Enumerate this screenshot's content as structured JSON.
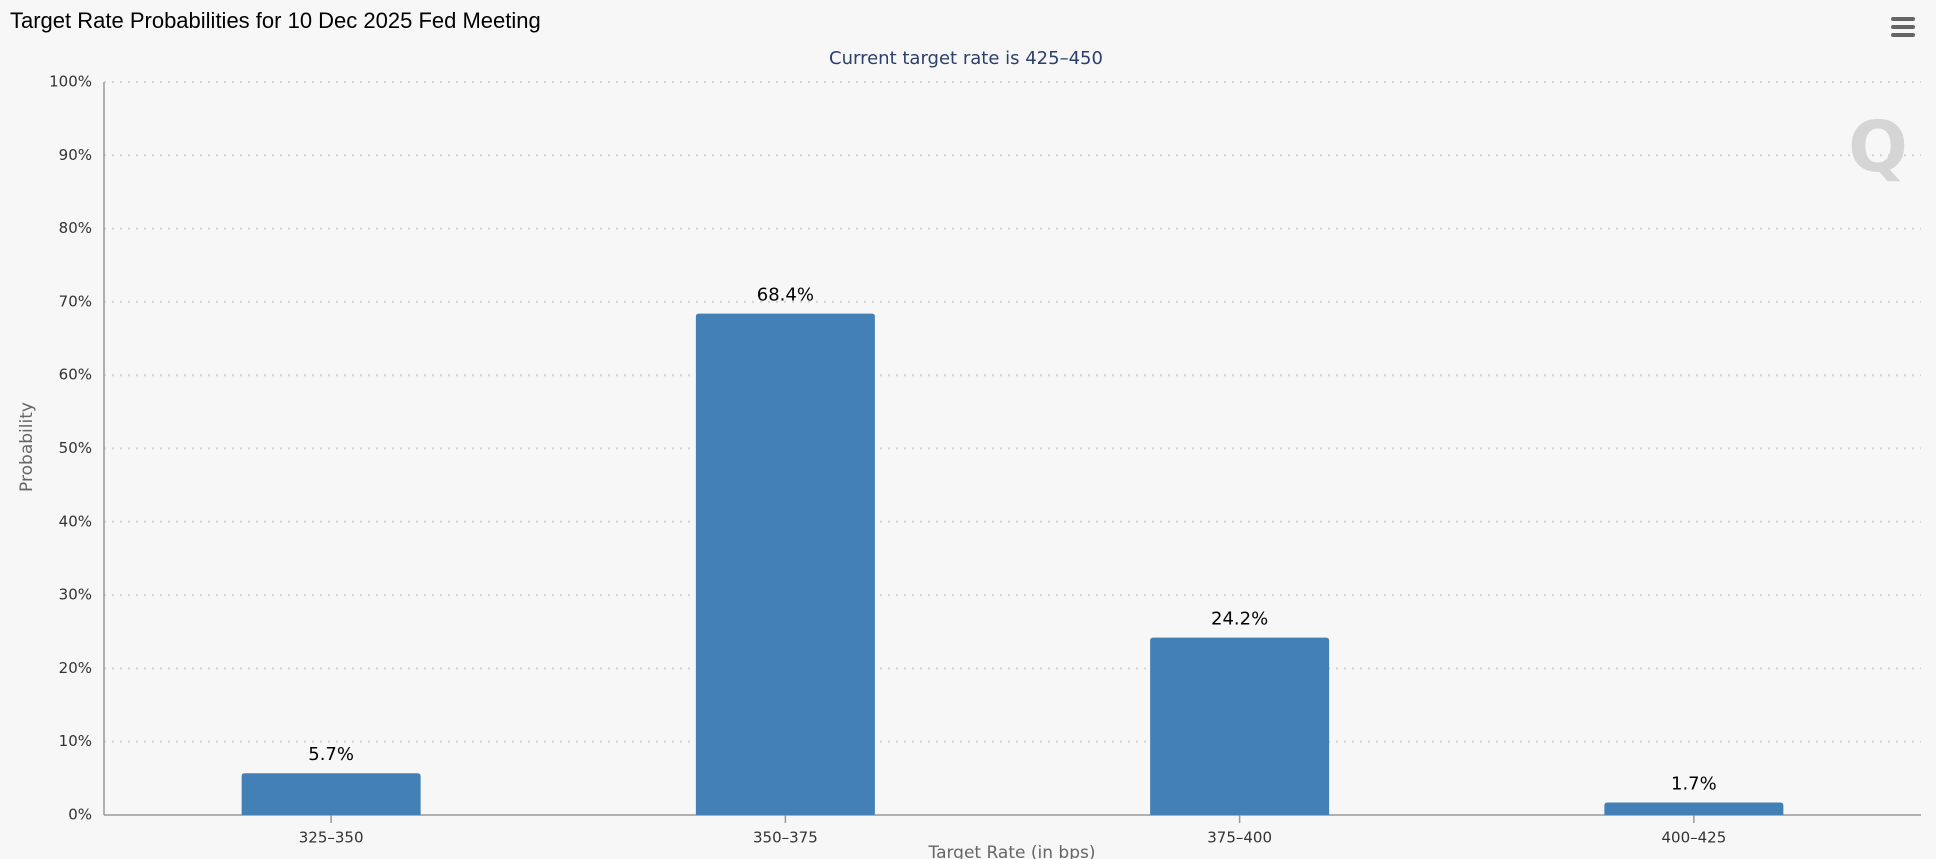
{
  "chart_data": {
    "type": "bar",
    "title": "Target Rate Probabilities for 10 Dec 2025 Fed Meeting",
    "subtitle": "Current target rate is 425–450",
    "x_label": "Target Rate (in bps)",
    "y_label": "Probability",
    "categories": [
      "325–350",
      "350–375",
      "375–400",
      "400–425"
    ],
    "values": [
      5.7,
      68.4,
      24.2,
      1.7
    ],
    "value_labels": [
      "5.7%",
      "68.4%",
      "24.2%",
      "1.7%"
    ],
    "color": "#4380b5",
    "ylim": [
      0,
      100
    ],
    "yticks": [
      {
        "value": 0,
        "label": "0%"
      },
      {
        "value": 10,
        "label": "10%"
      },
      {
        "value": 20,
        "label": "20%"
      },
      {
        "value": 30,
        "label": "30%"
      },
      {
        "value": 40,
        "label": "40%"
      },
      {
        "value": 50,
        "label": "50%"
      },
      {
        "value": 60,
        "label": "60%"
      },
      {
        "value": 70,
        "label": "70%"
      },
      {
        "value": 80,
        "label": "80%"
      },
      {
        "value": 90,
        "label": "90%"
      },
      {
        "value": 100,
        "label": "100%"
      }
    ],
    "grid": true
  }
}
